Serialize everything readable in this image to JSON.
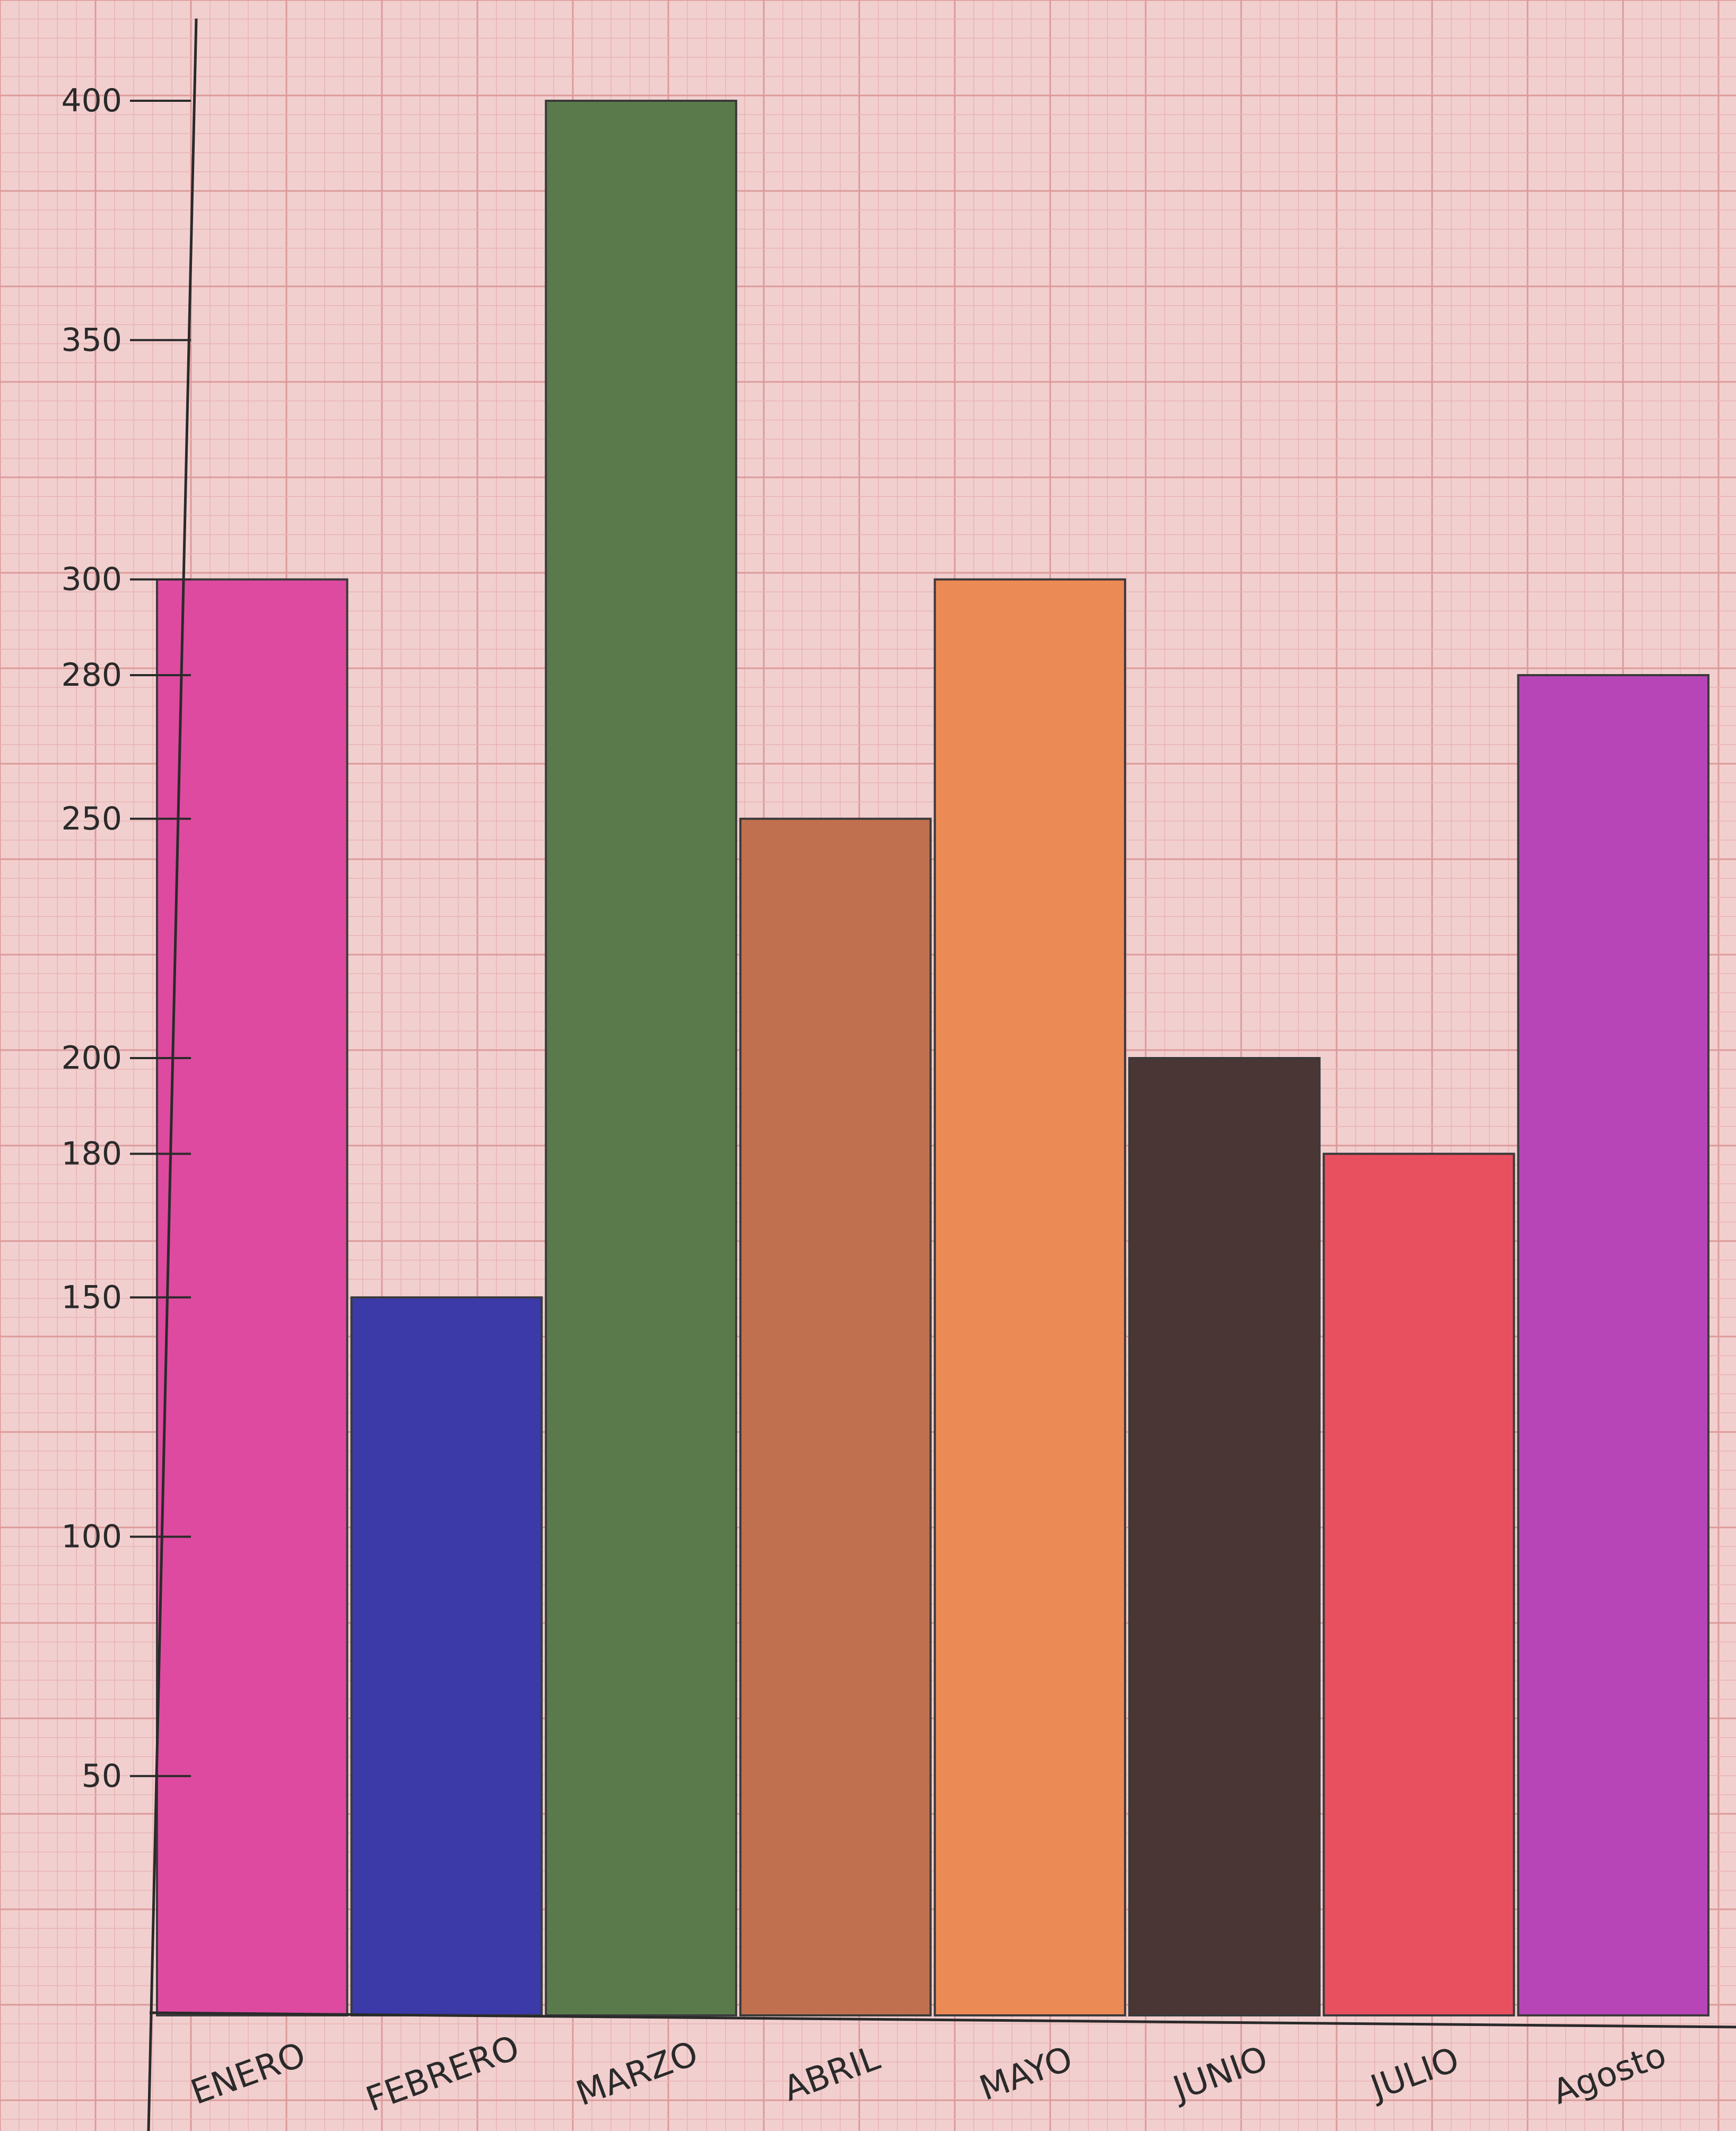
{
  "chart_data": {
    "type": "bar",
    "title": "",
    "xlabel": "",
    "ylabel": "",
    "categories": [
      "ENERO",
      "FEBRERO",
      "MARZO",
      "ABRIL",
      "MAYO",
      "JUNIO",
      "JULIO",
      "Agosto"
    ],
    "values": [
      300,
      150,
      400,
      250,
      300,
      200,
      180,
      280
    ],
    "bar_colors": [
      "#de4aa0",
      "#3b3aa8",
      "#5a7a4c",
      "#c0704e",
      "#ec8a56",
      "#4a3634",
      "#e85060",
      "#b845b8"
    ],
    "yticks": [
      50,
      100,
      150,
      180,
      200,
      250,
      280,
      300,
      350,
      400
    ],
    "ytick_labels": [
      "50",
      "100",
      "150",
      "180",
      "200",
      "250",
      "280",
      "300",
      "350",
      "400"
    ],
    "ylim": [
      0,
      400
    ],
    "grid": true,
    "legend": "none"
  },
  "colors": {
    "paper": "#f2cfcf",
    "grid_minor": "#e8b4b4",
    "grid_major": "#dc9a9a",
    "axis": "#2a2a2a"
  }
}
